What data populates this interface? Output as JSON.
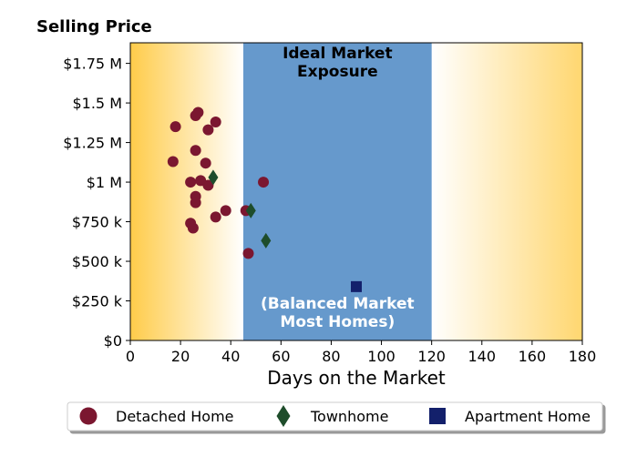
{
  "chart_data": {
    "type": "scatter",
    "title": "Selling Price",
    "xlabel": "Days on the Market",
    "ylabel": "",
    "xlim": [
      0,
      180
    ],
    "ylim": [
      0,
      1880000
    ],
    "x_ticks": [
      {
        "value": 0,
        "label": "0"
      },
      {
        "value": 20,
        "label": "20"
      },
      {
        "value": 40,
        "label": "40"
      },
      {
        "value": 60,
        "label": "60"
      },
      {
        "value": 80,
        "label": "80"
      },
      {
        "value": 100,
        "label": "100"
      },
      {
        "value": 120,
        "label": "120"
      },
      {
        "value": 140,
        "label": "140"
      },
      {
        "value": 160,
        "label": "160"
      },
      {
        "value": 180,
        "label": "180"
      }
    ],
    "y_ticks": [
      {
        "value": 0,
        "label": "$0"
      },
      {
        "value": 250000,
        "label": "$250 k"
      },
      {
        "value": 500000,
        "label": "$500 k"
      },
      {
        "value": 750000,
        "label": "$750 k"
      },
      {
        "value": 1000000,
        "label": "$1 M"
      },
      {
        "value": 1250000,
        "label": "$1.25 M"
      },
      {
        "value": 1500000,
        "label": "$1.5 M"
      },
      {
        "value": 1750000,
        "label": "$1.75 M"
      }
    ],
    "regions": [
      {
        "type": "gradient",
        "x": [
          0,
          45
        ],
        "direction": "fade-right",
        "color": "#ffc940"
      },
      {
        "type": "band",
        "x": [
          45,
          120
        ],
        "color": "#6699cc",
        "label_top": "Ideal Market\nExposure",
        "label_bottom": "(Balanced Market\nMost Homes)",
        "label_top_color": "#000000",
        "label_bottom_color": "#ffffff"
      },
      {
        "type": "gradient",
        "x": [
          120,
          180
        ],
        "direction": "fade-left",
        "color": "#ffc940"
      }
    ],
    "grid": false,
    "legend_position": "bottom",
    "series": [
      {
        "name": "Detached Home",
        "marker": "circle",
        "color": "#7b1730",
        "points": [
          {
            "x": 17,
            "y": 1130000
          },
          {
            "x": 18,
            "y": 1350000
          },
          {
            "x": 24,
            "y": 1000000
          },
          {
            "x": 24,
            "y": 740000
          },
          {
            "x": 25,
            "y": 710000
          },
          {
            "x": 26,
            "y": 1420000
          },
          {
            "x": 27,
            "y": 1440000
          },
          {
            "x": 26,
            "y": 1200000
          },
          {
            "x": 28,
            "y": 1010000
          },
          {
            "x": 26,
            "y": 910000
          },
          {
            "x": 26,
            "y": 870000
          },
          {
            "x": 30,
            "y": 1120000
          },
          {
            "x": 31,
            "y": 1330000
          },
          {
            "x": 31,
            "y": 980000
          },
          {
            "x": 34,
            "y": 1380000
          },
          {
            "x": 34,
            "y": 780000
          },
          {
            "x": 38,
            "y": 820000
          },
          {
            "x": 46,
            "y": 820000
          },
          {
            "x": 47,
            "y": 550000
          },
          {
            "x": 53,
            "y": 1000000
          }
        ]
      },
      {
        "name": "Townhome",
        "marker": "thin_diamond",
        "color": "#1e4d2b",
        "points": [
          {
            "x": 33,
            "y": 1030000
          },
          {
            "x": 48,
            "y": 820000
          },
          {
            "x": 54,
            "y": 630000
          }
        ]
      },
      {
        "name": "Apartment Home",
        "marker": "square",
        "color": "#13206b",
        "points": [
          {
            "x": 90,
            "y": 340000
          }
        ]
      }
    ]
  }
}
